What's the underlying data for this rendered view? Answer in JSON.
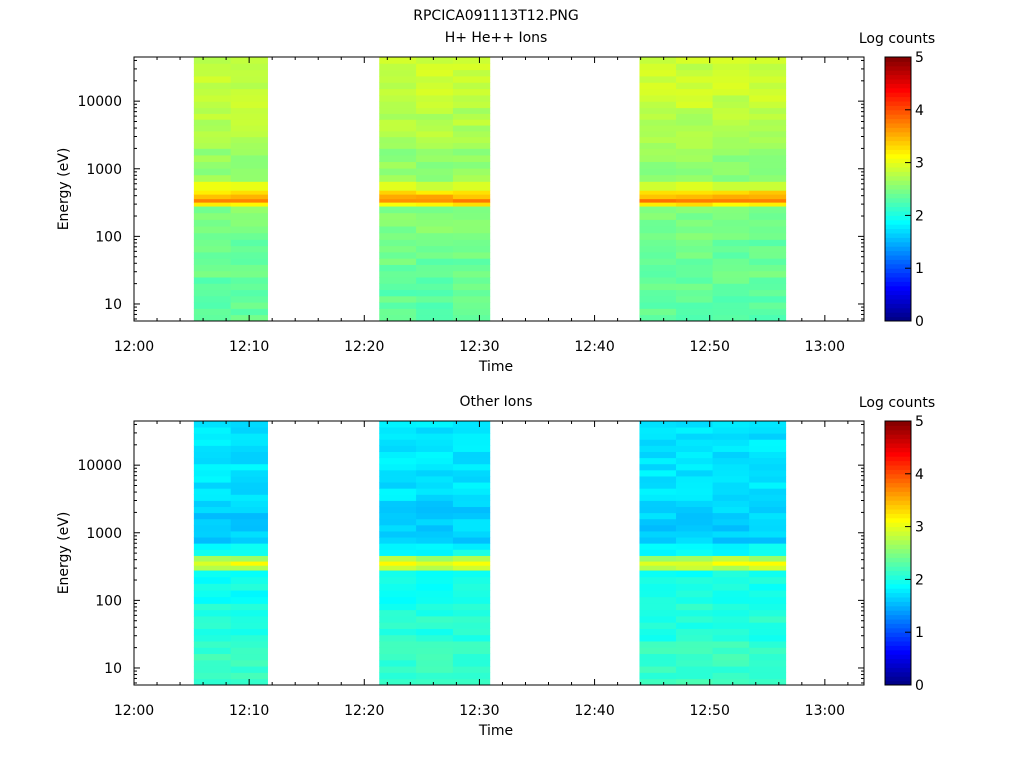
{
  "page": {
    "title": "RPCICA091113T12.PNG"
  },
  "colors": {
    "axis": "#000000",
    "background": "#ffffff",
    "colormap": [
      "#00008f",
      "#0000ff",
      "#0080ff",
      "#00ffff",
      "#80ff80",
      "#ffff00",
      "#ff8000",
      "#ff0000",
      "#800000"
    ]
  },
  "chart_data": [
    {
      "type": "heatmap",
      "title": "H+ He++ Ions",
      "xlabel": "Time",
      "ylabel": "Energy (eV)",
      "x_ticks": [
        "12:00",
        "12:10",
        "12:20",
        "12:30",
        "12:40",
        "12:50",
        "13:00"
      ],
      "x_tick_minutes": [
        0,
        10,
        20,
        30,
        40,
        50,
        60
      ],
      "xlim_minutes": [
        0,
        63.4
      ],
      "y_scale": "log",
      "y_ticks": [
        "10",
        "100",
        "1000",
        "10000"
      ],
      "y_tick_values": [
        10,
        100,
        1000,
        10000
      ],
      "ylim": [
        5.6,
        45000
      ],
      "colorbar": {
        "label": "Log counts",
        "range": [
          0,
          5
        ],
        "ticks": [
          "0",
          "1",
          "2",
          "3",
          "4",
          "5"
        ]
      },
      "blocks": [
        {
          "start_min": 5.2,
          "end_min": 11.6,
          "columns": 2
        },
        {
          "start_min": 21.3,
          "end_min": 30.9,
          "columns": 3
        },
        {
          "start_min": 43.9,
          "end_min": 56.6,
          "columns": 4
        }
      ],
      "energy_profile": [
        {
          "emin": 5.6,
          "emax": 25,
          "log_counts": 2.35
        },
        {
          "emin": 25,
          "emax": 90,
          "log_counts": 2.4
        },
        {
          "emin": 90,
          "emax": 280,
          "log_counts": 2.5
        },
        {
          "emin": 280,
          "emax": 320,
          "log_counts": 3.2
        },
        {
          "emin": 320,
          "emax": 360,
          "log_counts": 3.75
        },
        {
          "emin": 360,
          "emax": 420,
          "log_counts": 3.5
        },
        {
          "emin": 420,
          "emax": 480,
          "log_counts": 3.3
        },
        {
          "emin": 480,
          "emax": 650,
          "log_counts": 2.95
        },
        {
          "emin": 650,
          "emax": 2000,
          "log_counts": 2.6
        },
        {
          "emin": 2000,
          "emax": 8000,
          "log_counts": 2.75
        },
        {
          "emin": 8000,
          "emax": 45000,
          "log_counts": 2.85
        }
      ]
    },
    {
      "type": "heatmap",
      "title": "Other Ions",
      "xlabel": "Time",
      "ylabel": "Energy (eV)",
      "x_ticks": [
        "12:00",
        "12:10",
        "12:20",
        "12:30",
        "12:40",
        "12:50",
        "13:00"
      ],
      "x_tick_minutes": [
        0,
        10,
        20,
        30,
        40,
        50,
        60
      ],
      "xlim_minutes": [
        0,
        63.4
      ],
      "y_scale": "log",
      "y_ticks": [
        "10",
        "100",
        "1000",
        "10000"
      ],
      "y_tick_values": [
        10,
        100,
        1000,
        10000
      ],
      "ylim": [
        5.6,
        45000
      ],
      "colorbar": {
        "label": "Log counts",
        "range": [
          0,
          5
        ],
        "ticks": [
          "0",
          "1",
          "2",
          "3",
          "4",
          "5"
        ]
      },
      "blocks": [
        {
          "start_min": 5.2,
          "end_min": 11.6,
          "columns": 2
        },
        {
          "start_min": 21.3,
          "end_min": 30.9,
          "columns": 3
        },
        {
          "start_min": 43.9,
          "end_min": 56.6,
          "columns": 4
        }
      ],
      "energy_profile": [
        {
          "emin": 5.6,
          "emax": 25,
          "log_counts": 2.15
        },
        {
          "emin": 25,
          "emax": 90,
          "log_counts": 2.05
        },
        {
          "emin": 90,
          "emax": 280,
          "log_counts": 1.95
        },
        {
          "emin": 280,
          "emax": 330,
          "log_counts": 2.8
        },
        {
          "emin": 330,
          "emax": 380,
          "log_counts": 3.05
        },
        {
          "emin": 380,
          "emax": 460,
          "log_counts": 2.7
        },
        {
          "emin": 460,
          "emax": 700,
          "log_counts": 1.9
        },
        {
          "emin": 700,
          "emax": 3000,
          "log_counts": 1.65
        },
        {
          "emin": 3000,
          "emax": 45000,
          "log_counts": 1.75
        }
      ]
    }
  ]
}
